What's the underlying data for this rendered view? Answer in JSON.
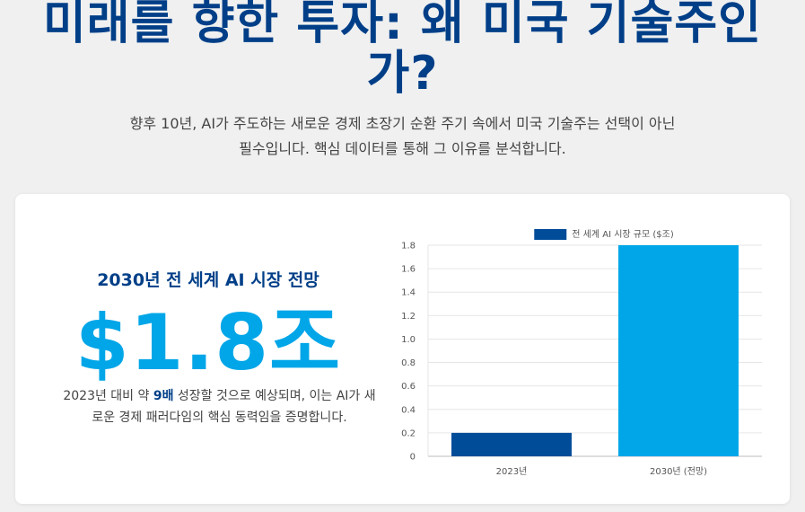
{
  "hero": {
    "title_line1": "미래를 향한 투자: 왜 미국 기술주인",
    "title_line2": "가?",
    "subtitle_line1": "향후 10년, AI가 주도하는 새로운 경제 초장기 순환 주기 속에서 미국 기술주는 선택이 아닌",
    "subtitle_line2": "필수입니다. 핵심 데이터를 통해 그 이유를 분석합니다."
  },
  "stat": {
    "heading": "2030년 전 세계 AI 시장 전망",
    "value": "$1.8조",
    "desc_before": "2023년 대비 약 ",
    "desc_highlight": "9배",
    "desc_after_line1": " 성장할 것으로 예상되며, 이는 AI가 새",
    "desc_line2": "로운 경제 패러다임의 핵심 동력임을 증명합니다."
  },
  "chart_data": {
    "type": "bar",
    "categories": [
      "2023년",
      "2030년 (전망)"
    ],
    "series": [
      {
        "name": "전 세계 AI 시장 규모 ($조)",
        "values": [
          0.2,
          1.8
        ]
      }
    ],
    "colors": [
      "#004c99",
      "#00a6e8"
    ],
    "legend_swatch_color": "#004c99",
    "ylim": [
      0,
      1.8
    ],
    "yticks": [
      0,
      0.2,
      0.4,
      0.6,
      0.8,
      1.0,
      1.2,
      1.4,
      1.6,
      1.8
    ],
    "ytick_labels": [
      "0",
      "0.2",
      "0.4",
      "0.6",
      "0.8",
      "1.0",
      "1.2",
      "1.4",
      "1.6",
      "1.8"
    ],
    "legend_position": "top",
    "grid": true,
    "title": "",
    "xlabel": "",
    "ylabel": ""
  }
}
